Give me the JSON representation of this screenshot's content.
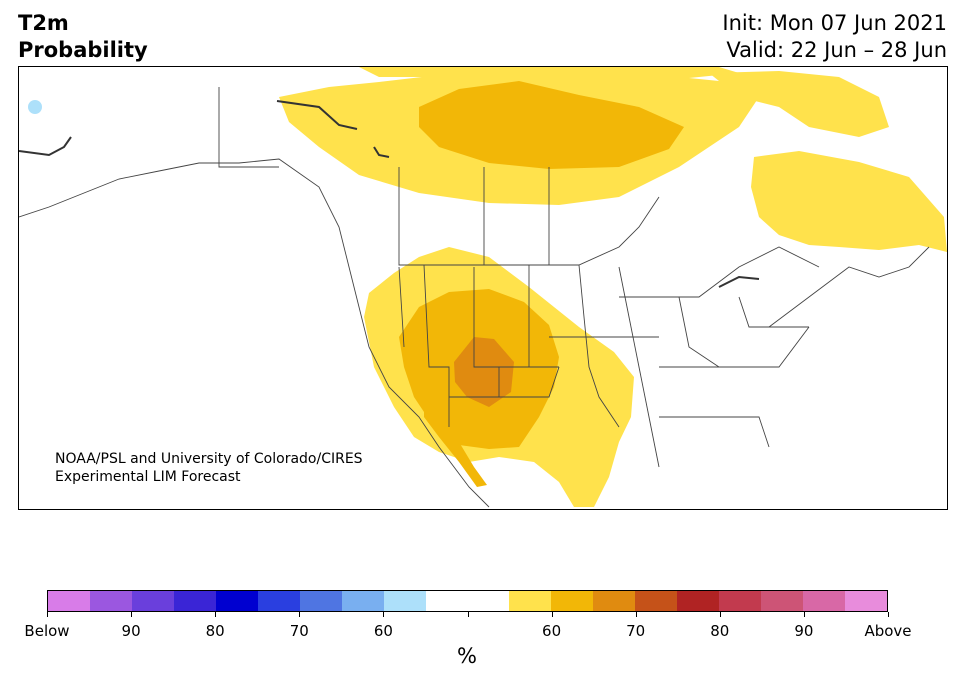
{
  "header": {
    "title_line1": "T2m",
    "title_line2": "Probability",
    "init": "Init: Mon 07 Jun 2021",
    "valid": "Valid: 22 Jun – 28 Jun"
  },
  "credit": {
    "line1": "NOAA/PSL and University of Colorado/CIRES",
    "line2": "Experimental LIM Forecast"
  },
  "colorbar": {
    "colors": [
      "#d87ce8",
      "#9b57e0",
      "#6a3fdc",
      "#3a25d6",
      "#0000d0",
      "#2a3fe0",
      "#4f75e2",
      "#79aff0",
      "#ade0fa",
      "#ffffff",
      "#ffffff",
      "#ffe24c",
      "#f2b707",
      "#e08b10",
      "#c55219",
      "#b02323",
      "#c23a4e",
      "#cd5476",
      "#d868a6",
      "#e88cdc"
    ],
    "labels": [
      "Below",
      "90",
      "80",
      "70",
      "60",
      "",
      "60",
      "70",
      "80",
      "90",
      "Above"
    ],
    "units": "%"
  },
  "legend_colors": {
    "above_55": "#ffe24c",
    "above_60": "#f2b707",
    "above_70": "#e08b10",
    "below_55": "#ade0fa"
  }
}
